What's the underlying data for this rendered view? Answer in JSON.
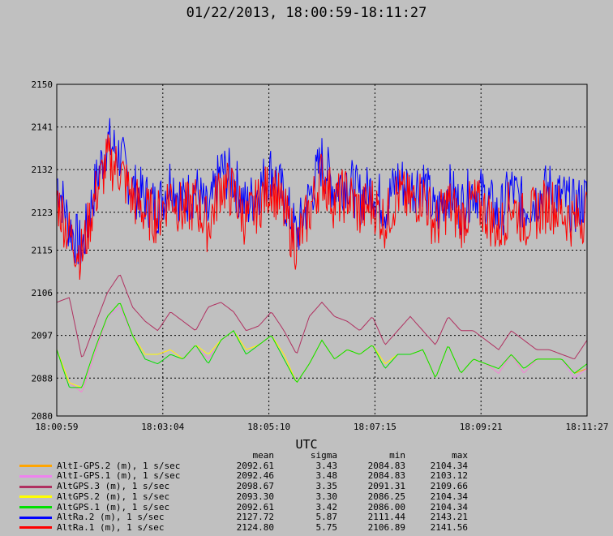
{
  "chart_data": {
    "type": "line",
    "title": "01/22/2013, 18:00:59-18:11:27",
    "xlabel": "UTC",
    "ylabel": "",
    "xlim": [
      "18:00:59",
      "18:11:27"
    ],
    "ylim": [
      2080,
      2150
    ],
    "x_ticks": [
      "18:00:59",
      "18:03:04",
      "18:05:10",
      "18:07:15",
      "18:09:21",
      "18:11:27"
    ],
    "y_ticks": [
      2080,
      2088,
      2097,
      2106,
      2115,
      2123,
      2132,
      2141,
      2150
    ],
    "grid": true,
    "series": [
      {
        "name": "AltI-GPS.2 (m), 1 s/sec",
        "color": "#ffa500",
        "values": [
          2094,
          2087,
          2085,
          2093,
          2101,
          2104,
          2097,
          2093,
          2093,
          2094,
          2092,
          2095,
          2092,
          2096,
          2098,
          2094,
          2095,
          2097,
          2093,
          2087,
          2091,
          2096,
          2092,
          2094,
          2093,
          2095,
          2091,
          2093,
          2093,
          2094,
          2088,
          2095,
          2089,
          2092,
          2091,
          2089,
          2093,
          2089,
          2092,
          2092,
          2092,
          2089,
          2090
        ]
      },
      {
        "name": "AltI-GPS.1 (m), 1 s/sec",
        "color": "#ee82ee",
        "values": [
          2094,
          2087,
          2085,
          2093,
          2101,
          2103,
          2097,
          2093,
          2093,
          2094,
          2092,
          2095,
          2092,
          2096,
          2098,
          2094,
          2095,
          2097,
          2093,
          2087,
          2091,
          2096,
          2092,
          2094,
          2093,
          2095,
          2091,
          2093,
          2093,
          2094,
          2088,
          2095,
          2089,
          2092,
          2091,
          2089,
          2093,
          2089,
          2092,
          2092,
          2092,
          2088,
          2090
        ]
      },
      {
        "name": "AltGPS.3 (m), 1 s/sec",
        "color": "#b03060",
        "values": [
          2104,
          2105,
          2092,
          2099,
          2106,
          2110,
          2103,
          2100,
          2098,
          2102,
          2100,
          2098,
          2103,
          2104,
          2102,
          2098,
          2099,
          2102,
          2098,
          2093,
          2101,
          2104,
          2101,
          2100,
          2098,
          2101,
          2095,
          2098,
          2101,
          2098,
          2095,
          2101,
          2098,
          2098,
          2096,
          2094,
          2098,
          2096,
          2094,
          2094,
          2093,
          2092,
          2096
        ]
      },
      {
        "name": "AltGPS.2 (m), 1 s/sec",
        "color": "#ffff00",
        "values": [
          2094,
          2087,
          2086,
          2094,
          2101,
          2104,
          2097,
          2093,
          2093,
          2094,
          2092,
          2095,
          2093,
          2096,
          2098,
          2094,
          2095,
          2097,
          2093,
          2087,
          2091,
          2096,
          2092,
          2094,
          2093,
          2095,
          2091,
          2093,
          2093,
          2094,
          2088,
          2095,
          2089,
          2092,
          2091,
          2090,
          2093,
          2090,
          2092,
          2092,
          2092,
          2089,
          2091
        ]
      },
      {
        "name": "AltGPS.1 (m), 1 s/sec",
        "color": "#00e000",
        "values": [
          2094,
          2086,
          2086,
          2094,
          2101,
          2104,
          2097,
          2092,
          2091,
          2093,
          2092,
          2095,
          2091,
          2096,
          2098,
          2093,
          2095,
          2097,
          2092,
          2087,
          2091,
          2096,
          2092,
          2094,
          2093,
          2095,
          2090,
          2093,
          2093,
          2094,
          2088,
          2095,
          2089,
          2092,
          2091,
          2090,
          2093,
          2090,
          2092,
          2092,
          2092,
          2089,
          2091
        ]
      },
      {
        "name": "AltRa.2 (m), 1 s/sec",
        "color": "#0000ff",
        "values": [
          2130,
          2120,
          2115,
          2128,
          2138,
          2135,
          2128,
          2126,
          2124,
          2130,
          2125,
          2128,
          2122,
          2132,
          2130,
          2124,
          2128,
          2132,
          2126,
          2118,
          2126,
          2134,
          2128,
          2130,
          2126,
          2128,
          2124,
          2130,
          2128,
          2130,
          2122,
          2128,
          2124,
          2128,
          2126,
          2122,
          2128,
          2124,
          2126,
          2128,
          2126,
          2124,
          2126
        ]
      },
      {
        "name": "AltRa.1 (m), 1 s/sec",
        "color": "#ff0000",
        "values": [
          2126,
          2118,
          2114,
          2126,
          2134,
          2132,
          2126,
          2123,
          2122,
          2127,
          2123,
          2125,
          2120,
          2129,
          2127,
          2121,
          2125,
          2129,
          2123,
          2116,
          2123,
          2131,
          2125,
          2127,
          2123,
          2125,
          2121,
          2127,
          2125,
          2127,
          2120,
          2125,
          2121,
          2125,
          2123,
          2119,
          2125,
          2121,
          2123,
          2125,
          2123,
          2121,
          2123
        ]
      }
    ]
  },
  "stats": {
    "headers": {
      "mean": "mean",
      "sigma": "sigma",
      "min": "min",
      "max": "max"
    },
    "rows": [
      {
        "label": "AltI-GPS.2 (m), 1 s/sec",
        "color": "#ffa500",
        "mean": "2092.61",
        "sigma": "3.43",
        "min": "2084.83",
        "max": "2104.34"
      },
      {
        "label": "AltI-GPS.1 (m), 1 s/sec",
        "color": "#ee82ee",
        "mean": "2092.46",
        "sigma": "3.48",
        "min": "2084.83",
        "max": "2103.12"
      },
      {
        "label": "AltGPS.3 (m), 1 s/sec",
        "color": "#b03060",
        "mean": "2098.67",
        "sigma": "3.35",
        "min": "2091.31",
        "max": "2109.66"
      },
      {
        "label": "AltGPS.2 (m), 1 s/sec",
        "color": "#ffff00",
        "mean": "2093.30",
        "sigma": "3.30",
        "min": "2086.25",
        "max": "2104.34"
      },
      {
        "label": "AltGPS.1 (m), 1 s/sec",
        "color": "#00e000",
        "mean": "2092.61",
        "sigma": "3.42",
        "min": "2086.00",
        "max": "2104.34"
      },
      {
        "label": "AltRa.2 (m), 1 s/sec",
        "color": "#0000ff",
        "mean": "2127.72",
        "sigma": "5.87",
        "min": "2111.44",
        "max": "2143.21"
      },
      {
        "label": "AltRa.1 (m), 1 s/sec",
        "color": "#ff0000",
        "mean": "2124.80",
        "sigma": "5.75",
        "min": "2106.89",
        "max": "2141.56"
      }
    ]
  }
}
